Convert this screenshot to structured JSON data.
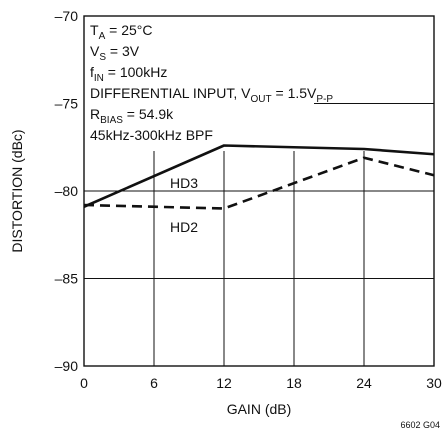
{
  "chart_data": {
    "type": "line",
    "xlabel": "GAIN (dB)",
    "ylabel": "DISTORTION (dBc)",
    "xlim": [
      0,
      30
    ],
    "ylim": [
      -90,
      -70
    ],
    "x_ticks": [
      "0",
      "6",
      "12",
      "18",
      "24",
      "30"
    ],
    "y_ticks": [
      "–70",
      "–75",
      "–80",
      "–85",
      "–90"
    ],
    "grid": true,
    "conditions": {
      "ta": "25°C",
      "vs": "3V",
      "fin": "100kHz",
      "input_prefix": "DIFFERENTIAL INPUT, V",
      "vout": "1.5V",
      "vout_sub": "P-P",
      "rbias": "54.9k",
      "bpf": "45kHz-300kHz BPF"
    },
    "series": [
      {
        "name": "HD3",
        "style": "solid",
        "x": [
          0,
          12,
          24,
          30
        ],
        "y": [
          -80.9,
          -77.4,
          -77.6,
          -77.9
        ]
      },
      {
        "name": "HD2",
        "style": "dashed",
        "x": [
          0,
          12,
          24,
          30
        ],
        "y": [
          -80.8,
          -81.0,
          -78.1,
          -79.1
        ]
      }
    ],
    "figure_id": "6602 G04"
  }
}
